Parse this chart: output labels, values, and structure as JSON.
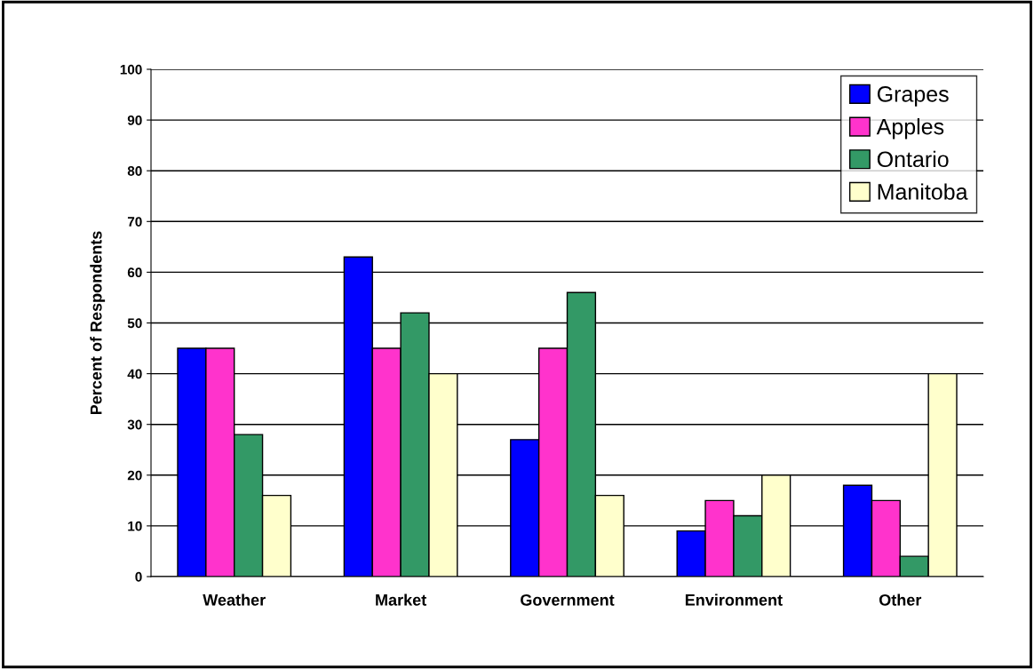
{
  "chart_data": {
    "type": "bar",
    "ylabel": "Percent of Respondents",
    "categories": [
      "Weather",
      "Market",
      "Government",
      "Environment",
      "Other"
    ],
    "series": [
      {
        "name": "Grapes",
        "color": "#0000ff",
        "values": [
          45,
          63,
          27,
          9,
          18
        ]
      },
      {
        "name": "Apples",
        "color": "#ff33cc",
        "values": [
          45,
          45,
          45,
          15,
          15
        ]
      },
      {
        "name": "Ontario",
        "color": "#339966",
        "values": [
          28,
          52,
          56,
          12,
          4
        ]
      },
      {
        "name": "Manitoba",
        "color": "#ffffcc",
        "values": [
          16,
          40,
          16,
          20,
          40
        ]
      }
    ],
    "ylim": [
      0,
      100
    ],
    "yticks": [
      0,
      10,
      20,
      30,
      40,
      50,
      60,
      70,
      80,
      90,
      100
    ],
    "grid": "y",
    "legend": "top right"
  }
}
